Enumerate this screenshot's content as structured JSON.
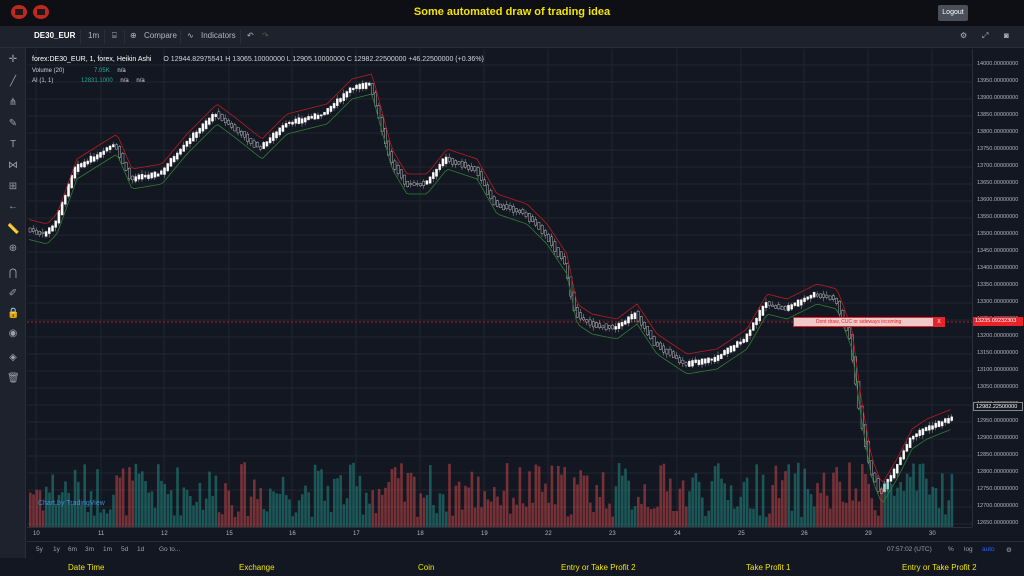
{
  "page": {
    "title": "Some automated draw of trading idea",
    "logout_label": "Logout"
  },
  "toolbar": {
    "symbol": "DE30_EUR",
    "interval": "1m",
    "compare_label": "Compare",
    "indicators_label": "Indicators"
  },
  "legend": {
    "main": "forex:DE30_EUR, 1, forex, Heikin Ashi",
    "ohlc": "O 12944.82975541   H 13065.10000000   L 12905.10000000   C 12982.22500000   +46.22500000 (+0.36%)",
    "volume_label": "Volume (20)",
    "volume_value": "7.05K",
    "volume_na": "n/a",
    "ai_label": "AI (1, 1)",
    "ai_value": "12831.1000",
    "ai_na1": "n/a",
    "ai_na2": "n/a"
  },
  "price_axis": {
    "labels": [
      "14000.00000000",
      "13950.00000000",
      "13900.00000000",
      "13850.00000000",
      "13800.00000000",
      "13750.00000000",
      "13700.00000000",
      "13650.00000000",
      "13600.00000000",
      "13550.00000000",
      "13500.00000000",
      "13450.00000000",
      "13400.00000000",
      "13350.00000000",
      "13300.00000000",
      "13250.00000000",
      "13200.00000000",
      "13150.00000000",
      "13100.00000000",
      "13050.00000000",
      "13000.00000000",
      "12950.00000000",
      "12900.00000000",
      "12850.00000000",
      "12800.00000000",
      "12750.00000000",
      "12700.00000000",
      "12650.00000000"
    ],
    "tag_price": "13235.09232303",
    "tag_last": "12982.22500000"
  },
  "time_axis": {
    "labels": [
      "10",
      "11",
      "12",
      "15",
      "16",
      "17",
      "18",
      "19",
      "22",
      "23",
      "24",
      "25",
      "26",
      "29",
      "30"
    ]
  },
  "bottom_bar": {
    "ranges": [
      "5y",
      "1y",
      "6m",
      "3m",
      "1m",
      "5d",
      "1d"
    ],
    "goto_label": "Go to...",
    "clock": "07:57:02 (UTC)",
    "percent": "%",
    "log": "log",
    "auto": "auto"
  },
  "annotation": {
    "text": "Dont draw, CUC or sideways incoming",
    "close": "X"
  },
  "watermark": "Chart by TradingView",
  "footer": [
    "Date Time",
    "Exchange",
    "Coin",
    "Entry or Take Profit 2",
    "Take Profit 1",
    "Entry or Take Profit 2"
  ],
  "colors": {
    "accent_yellow": "#f5e400",
    "up": "#26a69a",
    "down": "#ef5350",
    "alert": "#e8232a"
  },
  "icons": [
    "crosshair-icon",
    "trendline-icon",
    "pitchfork-icon",
    "brush-icon",
    "text-icon",
    "pattern-icon",
    "measure-icon",
    "back-arrow-icon",
    "ruler-icon",
    "zoom-icon",
    "magnet-icon",
    "lock-draw-icon",
    "lock-icon",
    "eye-icon",
    "layers-icon",
    "trash-icon"
  ]
}
